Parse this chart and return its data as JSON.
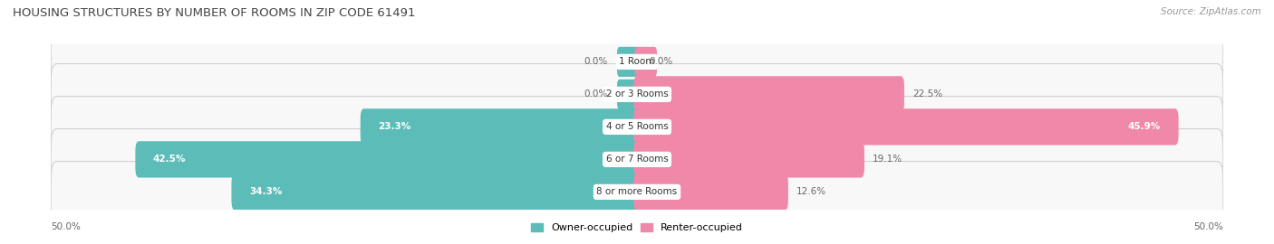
{
  "title": "HOUSING STRUCTURES BY NUMBER OF ROOMS IN ZIP CODE 61491",
  "source": "Source: ZipAtlas.com",
  "categories": [
    "1 Room",
    "2 or 3 Rooms",
    "4 or 5 Rooms",
    "6 or 7 Rooms",
    "8 or more Rooms"
  ],
  "owner_values": [
    0.0,
    0.0,
    23.3,
    42.5,
    34.3
  ],
  "renter_values": [
    0.0,
    22.5,
    45.9,
    19.1,
    12.6
  ],
  "owner_color": "#5bbcb8",
  "renter_color": "#f088aa",
  "row_bg_color": "#ececec",
  "row_inner_color": "#f8f8f8",
  "axis_min": -50.0,
  "axis_max": 50.0,
  "label_color": "#666666",
  "title_color": "#444444",
  "category_fontsize": 7.5,
  "value_fontsize": 7.5,
  "title_fontsize": 9.5,
  "legend_fontsize": 8,
  "source_fontsize": 7.5
}
